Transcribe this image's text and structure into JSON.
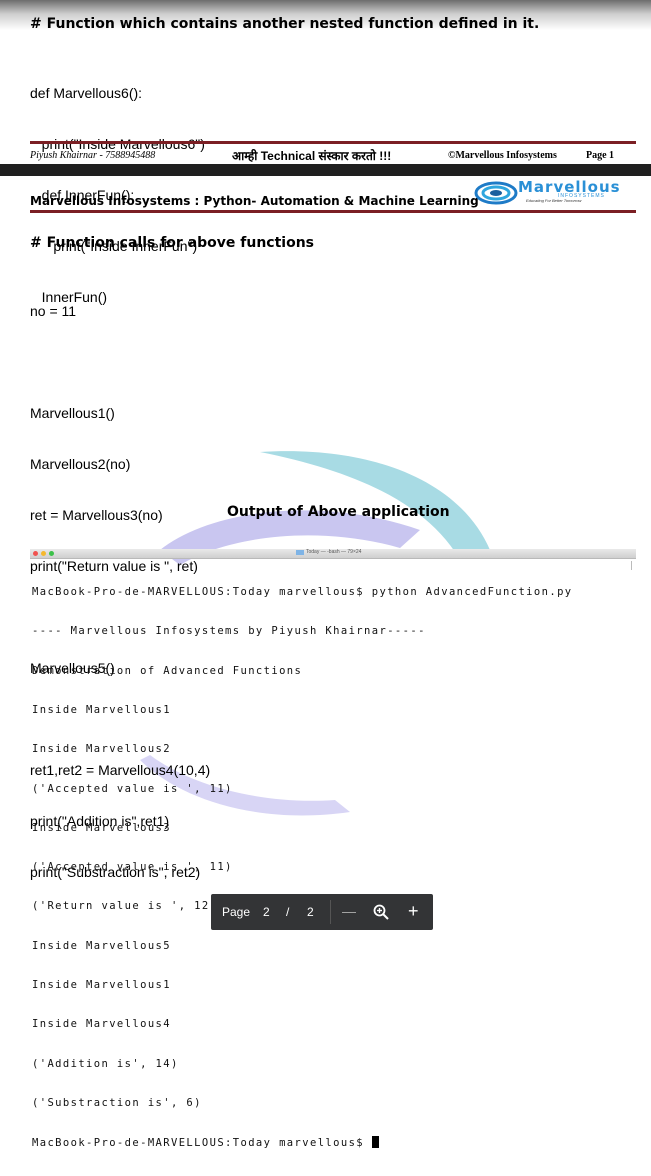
{
  "top_page": {
    "heading": "# Function which contains another nested function defined in it.",
    "code": [
      "def Marvellous6():",
      "   print(\"Inside Marvellous6\")",
      "   def InnerFun():",
      "      print(\"Inside InnerFun\")",
      "   InnerFun()"
    ],
    "footer": {
      "author": "Piyush Khairnar - 7588945488",
      "tagline": "आम्ही Technical संस्कार करतो !!!",
      "copyright": "©Marvellous Infosystems",
      "page": "Page 1"
    }
  },
  "page_header": {
    "title": "Marvellous Infosystems : Python- Automation & Machine Learning",
    "logo_text": "Marvellous",
    "logo_sub": "INFOSYSTEMS",
    "logo_tag": "Educating For Better Tomorrow"
  },
  "section": {
    "heading": "# Function calls for above functions",
    "code": [
      "no = 11",
      "",
      "Marvellous1()",
      "Marvellous2(no)",
      "ret = Marvellous3(no)",
      "print(\"Return value is \", ret)",
      "",
      "Marvellous5()",
      "",
      "ret1,ret2 = Marvellous4(10,4)",
      "print(\"Addition is\",ret1)",
      "print(\"Substraction is\", ret2)"
    ],
    "output_heading": "Output of Above application"
  },
  "terminal": {
    "title": "Today — -bash — 79×24",
    "lines": [
      "MacBook-Pro-de-MARVELLOUS:Today marvellous$ python AdvancedFunction.py",
      "---- Marvellous Infosystems by Piyush Khairnar-----",
      "Demonstration of Advanced Functions",
      "Inside Marvellous1",
      "Inside Marvellous2",
      "('Accepted value is ', 11)",
      "Inside Marvellous3",
      "('Accepted value is ', 11)",
      "('Return value is ', 12)",
      "Inside Marvellous5",
      "Inside Marvellous1",
      "Inside Marvellous4",
      "('Addition is', 14)",
      "('Substraction is', 6)"
    ],
    "prompt": "MacBook-Pro-de-MARVELLOUS:Today marvellous$ ",
    "colors": {
      "close": "#f0524f",
      "min": "#f5b82e",
      "max": "#3cc14a"
    }
  },
  "pager": {
    "label": "Page",
    "current": "2",
    "separator": "/",
    "total": "2",
    "zoom_out": "—",
    "zoom_in": "+",
    "zoom_icon": "magnifier-icon"
  }
}
